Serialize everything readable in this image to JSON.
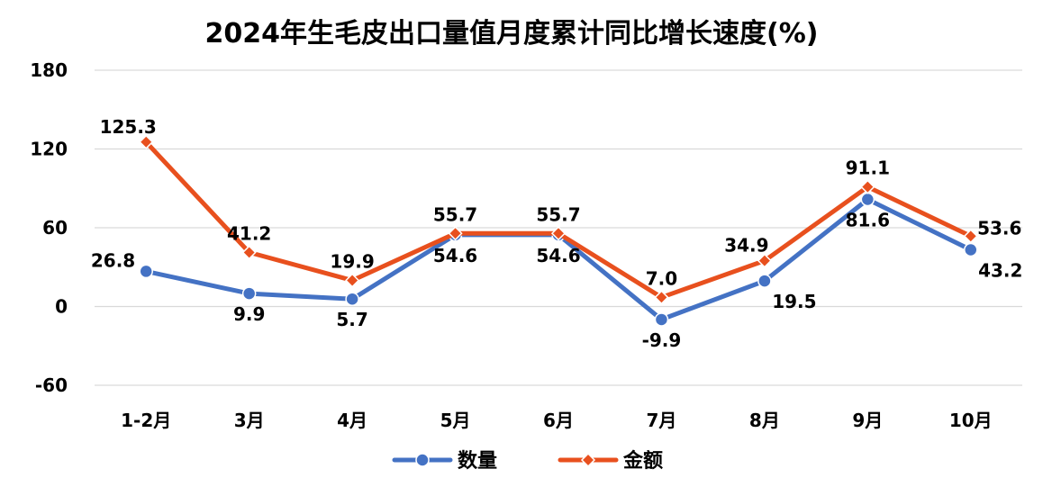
{
  "chart_data": {
    "type": "line",
    "title": "2024年生毛皮出口量值月度累计同比增长速度(%)",
    "xlabel": "",
    "ylabel": "",
    "categories": [
      "1-2月",
      "3月",
      "4月",
      "5月",
      "6月",
      "7月",
      "8月",
      "9月",
      "10月"
    ],
    "ylim": [
      -60,
      180
    ],
    "yticks": [
      -60,
      0,
      60,
      120,
      180
    ],
    "grid": true,
    "legend_position": "bottom",
    "series": [
      {
        "name": "数量",
        "values": [
          26.8,
          9.9,
          5.7,
          54.6,
          54.6,
          -9.9,
          19.5,
          81.6,
          43.2
        ],
        "color": "#4472C4",
        "marker": "circle"
      },
      {
        "name": "金额",
        "values": [
          125.3,
          41.2,
          19.9,
          55.7,
          55.7,
          7.0,
          34.9,
          91.1,
          53.6
        ],
        "color": "#E8501E",
        "marker": "diamond"
      }
    ]
  }
}
